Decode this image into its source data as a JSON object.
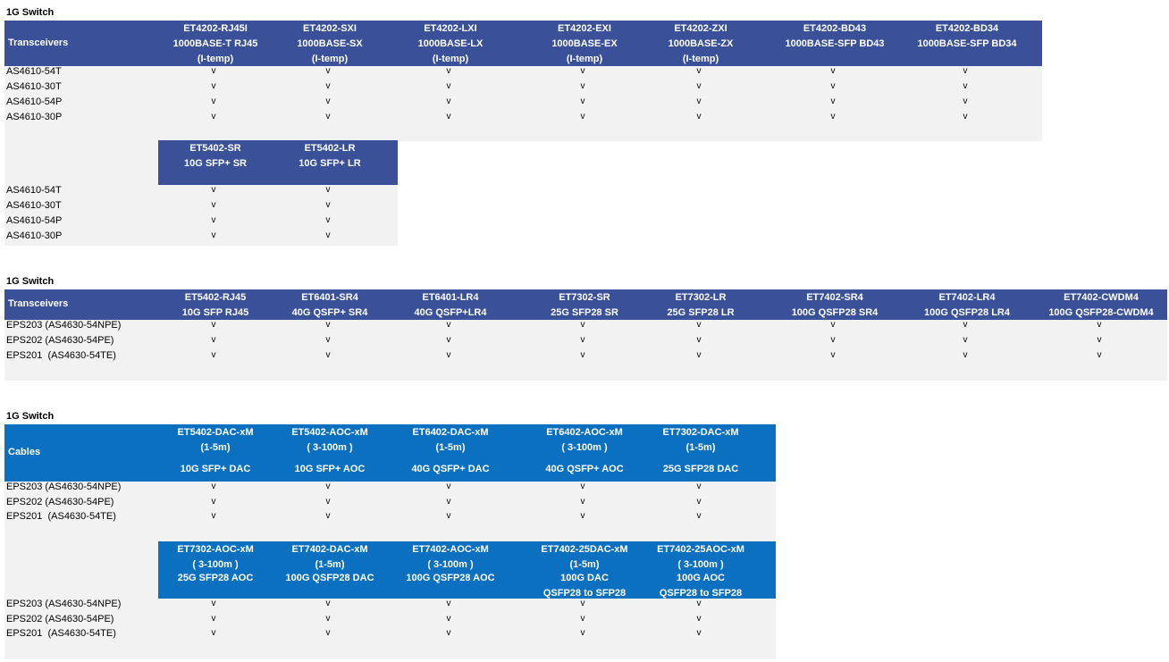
{
  "sections": [
    {
      "title": "1G Switch",
      "corner": "Transceivers",
      "columns": [
        [
          "ET4202-RJ45I",
          "1000BASE-T RJ45",
          "(I-temp)"
        ],
        [
          "ET4202-SXI",
          "1000BASE-SX",
          "(I-temp)"
        ],
        [
          "ET4202-LXI",
          "1000BASE-LX",
          "(I-temp)"
        ],
        [
          "ET4202-EXI",
          "1000BASE-EX",
          "(I-temp)"
        ],
        [
          "ET4202-ZXI",
          "1000BASE-ZX",
          "(I-temp)"
        ],
        [
          "ET4202-BD43",
          "1000BASE-SFP BD43"
        ],
        [
          "ET4202-BD34",
          "1000BASE-SFP BD34"
        ]
      ],
      "rows": [
        "AS4610-54T",
        "AS4610-30T",
        "AS4610-54P",
        "AS4610-30P"
      ],
      "mark": "v",
      "sub": {
        "columns": [
          [
            "ET5402-SR",
            "10G SFP+ SR"
          ],
          [
            "ET5402-LR",
            "10G SFP+ LR"
          ]
        ],
        "rows": [
          "AS4610-54T",
          "AS4610-30T",
          "AS4610-54P",
          "AS4610-30P"
        ]
      }
    },
    {
      "title": "1G Switch",
      "corner": "Transceivers",
      "columns": [
        [
          "ET5402-RJ45",
          "10G SFP RJ45"
        ],
        [
          "ET6401-SR4",
          "40G QSFP+ SR4"
        ],
        [
          "ET6401-LR4",
          "40G QSFP+LR4"
        ],
        [
          "ET7302-SR",
          "25G SFP28 SR"
        ],
        [
          "ET7302-LR",
          "25G SFP28 LR"
        ],
        [
          "ET7402-SR4",
          "100G QSFP28 SR4"
        ],
        [
          "ET7402-LR4",
          "100G QSFP28 LR4"
        ],
        [
          "ET7402-CWDM4",
          "100G QSFP28-CWDM4"
        ]
      ],
      "rows": [
        "EPS203 (AS4630-54NPE)",
        "EPS202 (AS4630-54PE)",
        "EPS201  (AS4630-54TE)"
      ],
      "mark": "v"
    },
    {
      "title": "1G Switch",
      "corner": "Cables",
      "columns": [
        [
          "ET5402-DAC-xM",
          "(1-5m)",
          "10G SFP+ DAC"
        ],
        [
          "ET5402-AOC-xM",
          "( 3-100m )",
          "10G SFP+ AOC"
        ],
        [
          "ET6402-DAC-xM",
          "(1-5m)",
          "40G QSFP+ DAC"
        ],
        [
          "ET6402-AOC-xM",
          "( 3-100m )",
          "40G QSFP+ AOC"
        ],
        [
          "ET7302-DAC-xM",
          "(1-5m)",
          "25G SFP28 DAC"
        ]
      ],
      "rows": [
        "EPS203 (AS4630-54NPE)",
        "EPS202 (AS4630-54PE)",
        "EPS201  (AS4630-54TE)"
      ],
      "mark": "v",
      "sub": {
        "columns": [
          [
            "ET7302-AOC-xM",
            "( 3-100m )",
            "25G SFP28 AOC"
          ],
          [
            "ET7402-DAC-xM",
            "(1-5m)",
            "100G QSFP28 DAC"
          ],
          [
            "ET7402-AOC-xM",
            "( 3-100m )",
            "100G QSFP28 AOC"
          ],
          [
            "ET7402-25DAC-xM",
            "(1-5m)",
            "100G  DAC",
            "QSFP28 to SFP28"
          ],
          [
            "ET7402-25AOC-xM",
            "( 3-100m )",
            "100G  AOC",
            "QSFP28 to SFP28"
          ]
        ],
        "rows": [
          "EPS203 (AS4630-54NPE)",
          "EPS202 (AS4630-54PE)",
          "EPS201  (AS4630-54TE)"
        ]
      }
    }
  ]
}
